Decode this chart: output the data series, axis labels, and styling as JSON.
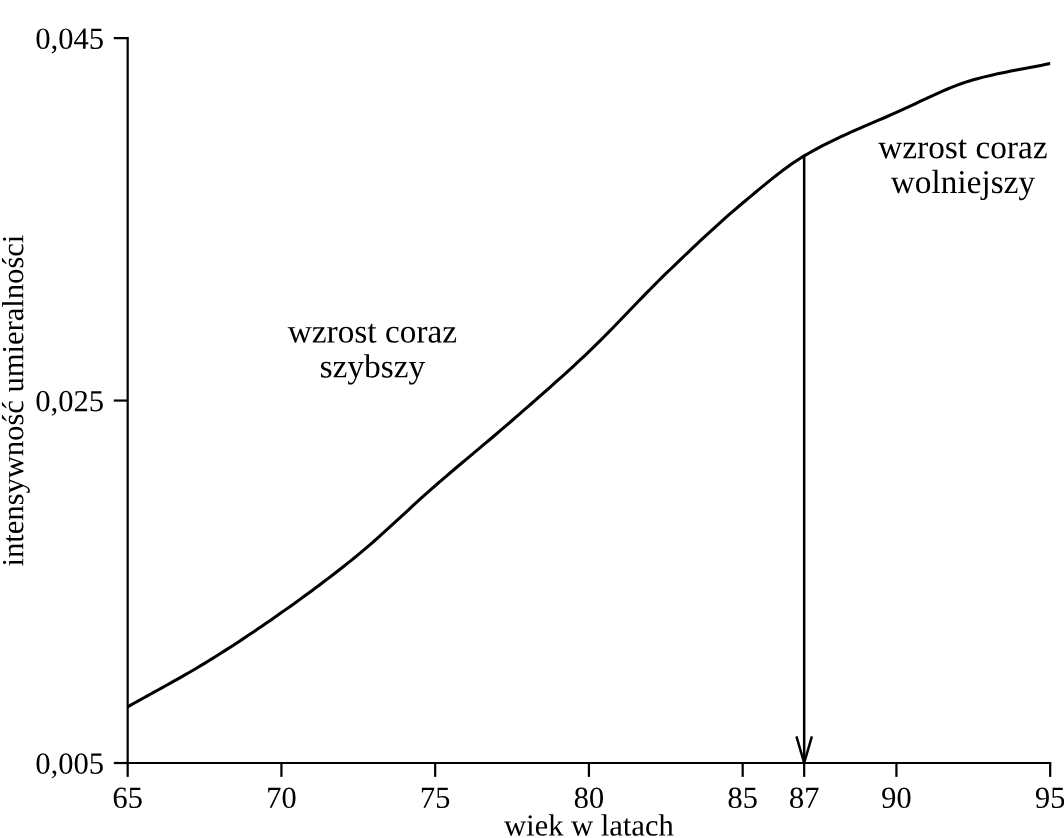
{
  "chart_data": {
    "type": "line",
    "xlabel": "wiek w latach",
    "ylabel": "intensywność umieralności",
    "x": [
      65,
      67.5,
      70,
      72.5,
      75,
      77.5,
      80,
      82.5,
      85,
      87,
      90,
      92.5,
      95
    ],
    "series": [
      {
        "color": "#000000",
        "values": [
          0.0081,
          0.0105,
          0.0133,
          0.0165,
          0.0203,
          0.0239,
          0.0277,
          0.032,
          0.0359,
          0.0385,
          0.0409,
          0.0427,
          0.0436
        ]
      }
    ],
    "xlim": [
      65,
      95
    ],
    "ylim": [
      0.005,
      0.045
    ],
    "xticks": [
      65,
      70,
      75,
      80,
      85,
      87,
      90,
      95
    ],
    "yticks": [
      {
        "value": 0.005,
        "label": "0,005"
      },
      {
        "value": 0.025,
        "label": "0,025"
      },
      {
        "value": 0.045,
        "label": "0,045"
      }
    ],
    "ref_lines": [
      {
        "axis": "x",
        "value": 87,
        "color": "#000000"
      }
    ],
    "annotations": [
      "wzrost coraz\nszybszy",
      "wzrost coraz\nwolniejszy"
    ],
    "grid": false,
    "legend": false,
    "marker": "none",
    "line_style": "solid"
  }
}
